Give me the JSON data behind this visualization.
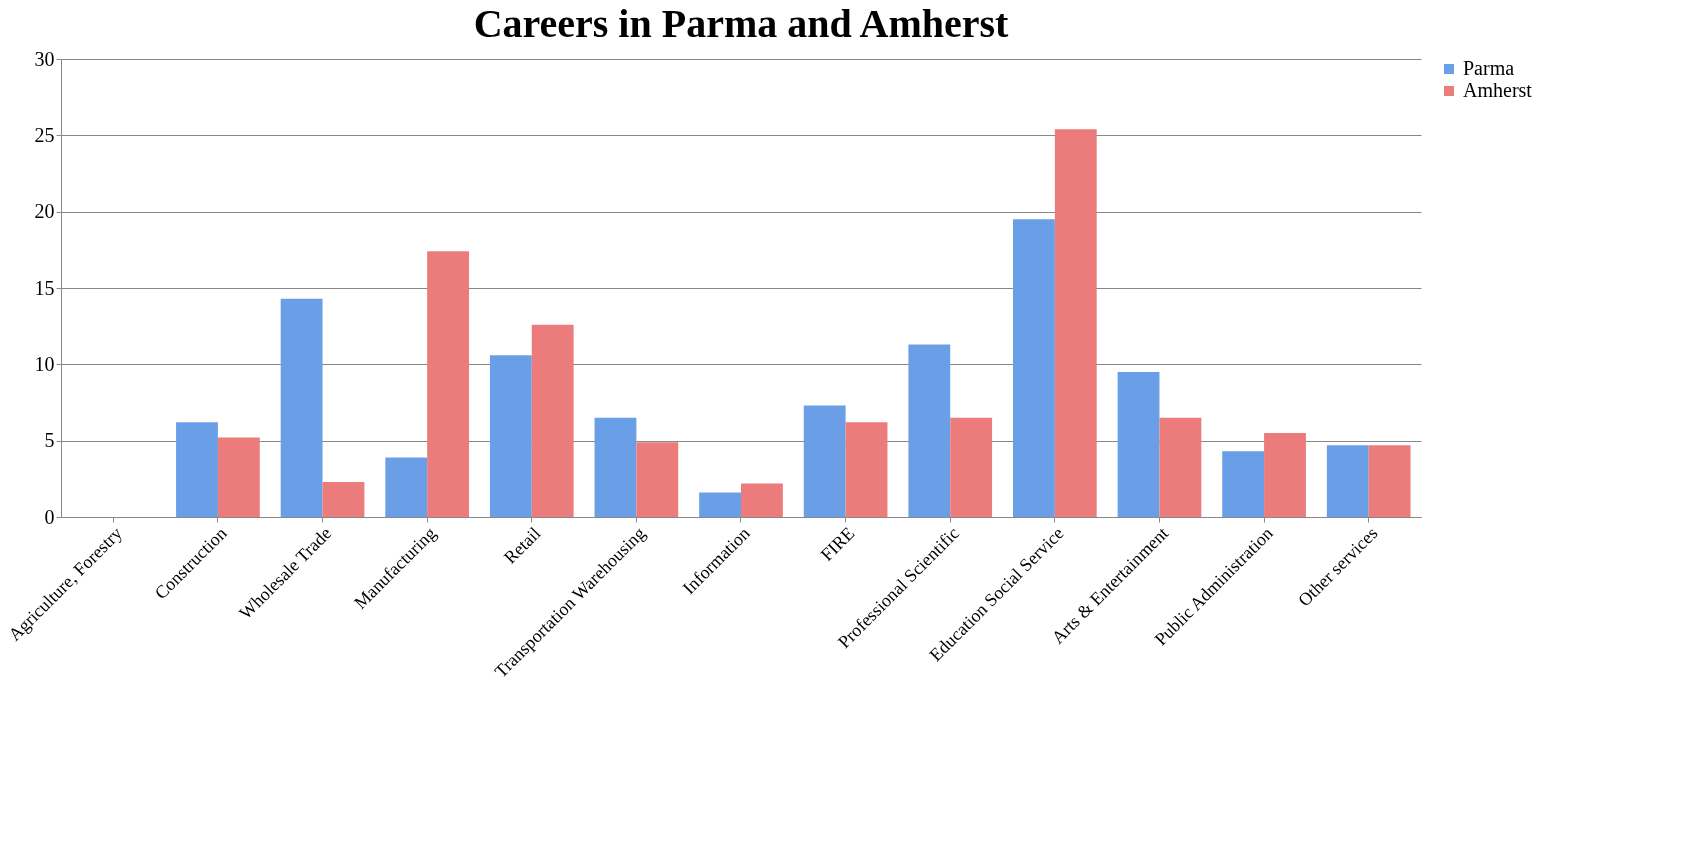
{
  "chart_data": {
    "type": "bar",
    "title": "Careers in Parma and Amherst",
    "categories": [
      "Agriculture, Forestry",
      "Construction",
      "Wholesale Trade",
      "Manufacturing",
      "Retail",
      "Transportation Warehousing",
      "Information",
      "FIRE",
      "Professional Scientific",
      "Education Social Service",
      "Arts & Entertainment",
      "Public Administration",
      "Other services"
    ],
    "series": [
      {
        "name": "Parma",
        "color": "#6a9fe8",
        "values": [
          0,
          6.2,
          14.3,
          3.9,
          10.6,
          6.5,
          1.6,
          7.3,
          11.3,
          19.5,
          9.5,
          4.3,
          4.7
        ]
      },
      {
        "name": "Amherst",
        "color": "#ec7b7b",
        "values": [
          0,
          5.2,
          2.3,
          17.4,
          12.6,
          4.9,
          2.2,
          6.2,
          6.5,
          25.4,
          6.5,
          5.5,
          4.7
        ]
      }
    ],
    "ylim": [
      0,
      30
    ],
    "yticks": [
      0,
      5,
      10,
      15,
      20,
      25,
      30
    ],
    "grid": "y",
    "legend": "right"
  }
}
